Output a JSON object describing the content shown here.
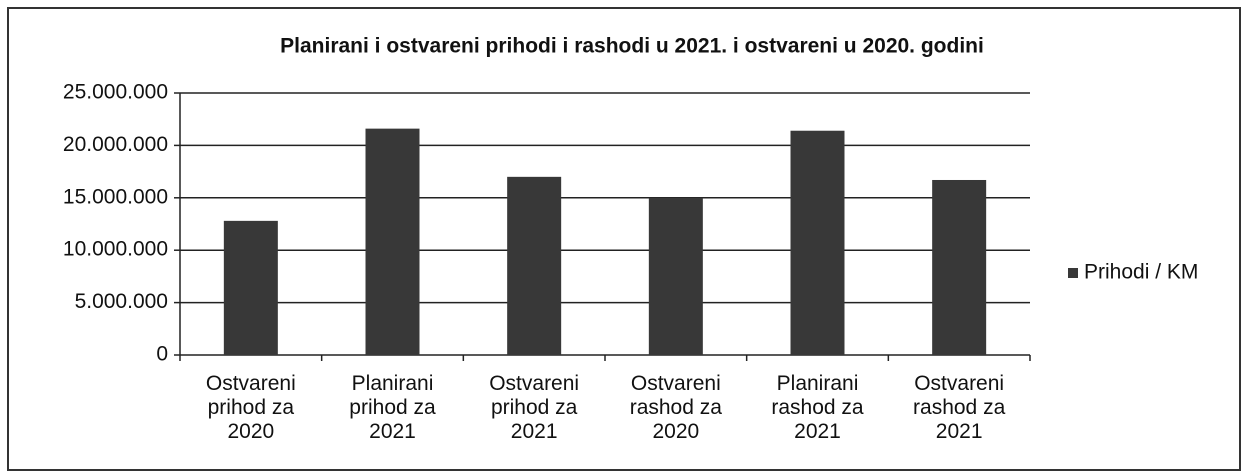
{
  "chart_data": {
    "type": "bar",
    "title": "Planirani i ostvareni prihodi i rashodi u 2021.  i ostvareni u 2020. godini",
    "categories": [
      "Ostvareni prihod za 2020",
      "Planirani prihod za 2021",
      "Ostvareni prihod za 2021",
      "Ostvareni rashod za 2020",
      "Planirani rashod za 2021",
      "Ostvareni rashod za 2021"
    ],
    "series": [
      {
        "name": "Prihodi / KM",
        "color": "#383838",
        "values": [
          12800000,
          21600000,
          17000000,
          15000000,
          21400000,
          16700000
        ]
      }
    ],
    "ylim": [
      0,
      25000000
    ],
    "yticks": [
      0,
      {
        "value": 5000000,
        "label": "5.000.000"
      },
      {
        "value": 10000000,
        "label": "10.000.000"
      },
      {
        "value": 15000000,
        "label": "15.000.000"
      },
      {
        "value": 20000000,
        "label": "20.000.000"
      },
      {
        "value": 25000000,
        "label": "25.000.000"
      }
    ],
    "grid": true,
    "legend": "right"
  }
}
